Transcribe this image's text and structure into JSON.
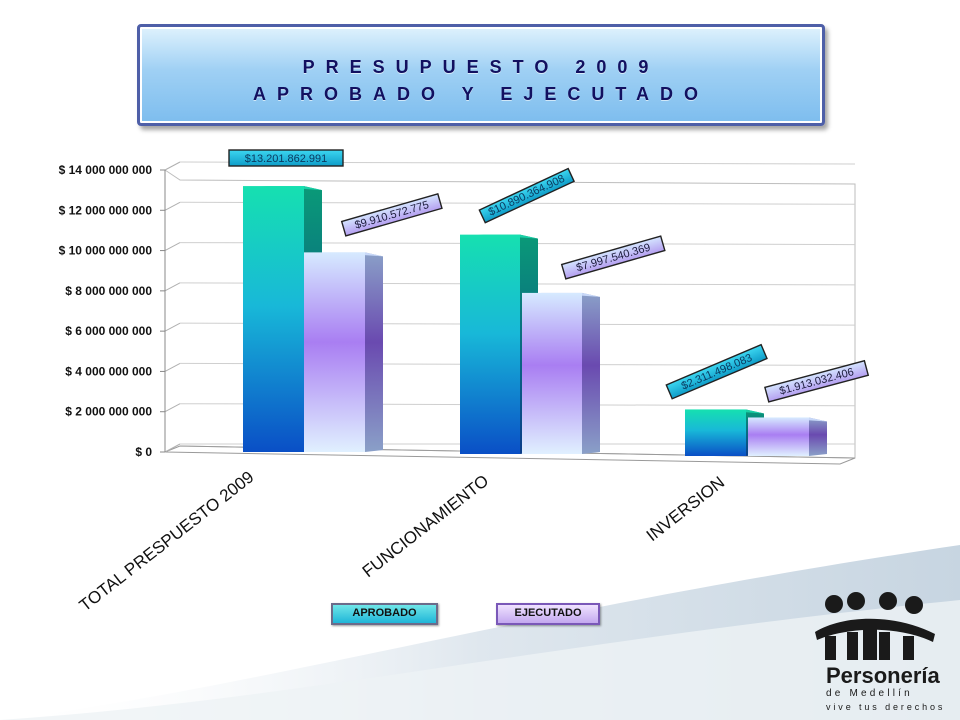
{
  "title": {
    "line1": "PRESUPUESTO 2009",
    "line2": "APROBADO Y EJECUTADO"
  },
  "chart_data": {
    "type": "bar",
    "categories": [
      "TOTAL PRESPUESTO 2009",
      "FUNCIONAMIENTO",
      "INVERSION"
    ],
    "series": [
      {
        "name": "APROBADO",
        "values": [
          13201862991,
          10890364908,
          2311498083
        ],
        "labels": [
          "$13.201.862.991",
          "$10.890.364.908",
          "$2.311.498.083"
        ]
      },
      {
        "name": "EJECUTADO",
        "values": [
          9910572775,
          7997540369,
          1913032406
        ],
        "labels": [
          "$9.910.572.775",
          "$7.997.540.369",
          "$1.913.032.406"
        ]
      }
    ],
    "yticks": [
      "$ 0",
      "$ 2 000 000 000",
      "$ 4 000 000 000",
      "$ 6 000 000 000",
      "$ 8 000 000 000",
      "$ 10 000 000 000",
      "$ 12 000 000 000",
      "$ 14 000 000 000"
    ],
    "ylim": [
      0,
      14000000000
    ],
    "grid": true,
    "legend": "bottom-center"
  },
  "legend": {
    "approved": "APROBADO",
    "executed": "EJECUTADO"
  },
  "logo": {
    "name": "Personería",
    "city": "de Medellín",
    "slogan": "vive tus derechos"
  },
  "colors": {
    "approved_top": "#1fe0b4",
    "approved_bottom": "#0a55c8",
    "executed_top": "#d8e6ff",
    "executed_mid": "#a77ff0",
    "title_text": "#121060"
  }
}
